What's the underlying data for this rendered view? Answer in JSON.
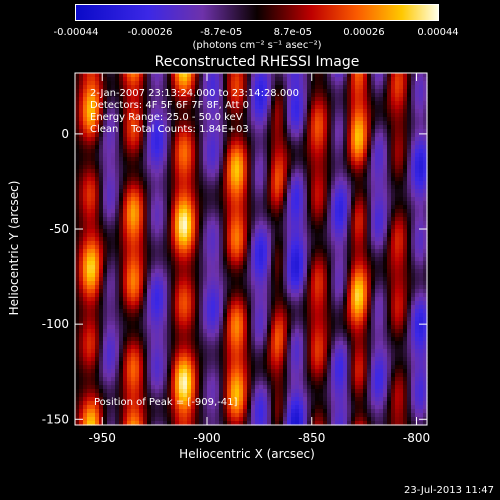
{
  "chart_data": {
    "type": "heatmap",
    "title": "Reconstructed RHESSI Image",
    "xlabel": "Heliocentric X (arcsec)",
    "ylabel": "Heliocentric Y (arcsec)",
    "xlim": [
      -963,
      -795
    ],
    "ylim": [
      -153,
      32
    ],
    "xticks": [
      -950,
      -900,
      -850,
      -800
    ],
    "xtick_labels": [
      "-950",
      "-900",
      "-850",
      "-800"
    ],
    "yticks": [
      0,
      -50,
      -100,
      -150
    ],
    "ytick_labels": [
      "0",
      "-50",
      "-100",
      "-150"
    ],
    "colorbar": {
      "ticks": [
        -0.00044,
        -0.00026,
        -8.7e-05,
        8.7e-05,
        0.00026,
        0.00044
      ],
      "tick_labels": [
        "-0.00044",
        "-0.00026",
        "-8.7e-05",
        "8.7e-05",
        "0.00026",
        "0.00044"
      ],
      "units": "(photons cm⁻² s⁻¹ asec⁻²)",
      "range": [
        -0.00044,
        0.00044
      ]
    },
    "annotations": [
      "2-Jan-2007 23:13:24.000 to 23:14:28.000",
      "Detectors: 4F 5F 6F 7F 8F, Att 0",
      "Energy Range: 25.0 - 50.0 keV",
      "Clean    Total Counts: 1.84E+03"
    ],
    "peak_label": "Position of Peak = [-909,-41]",
    "peak": [
      -909,
      -41
    ],
    "stripes": [
      {
        "x": -955,
        "sign": 1,
        "amp": 0.9
      },
      {
        "x": -947,
        "sign": -1,
        "amp": 0.5
      },
      {
        "x": -935,
        "sign": 1,
        "amp": 0.85
      },
      {
        "x": -924,
        "sign": -1,
        "amp": 0.6
      },
      {
        "x": -911,
        "sign": 1,
        "amp": 1.0
      },
      {
        "x": -897,
        "sign": -1,
        "amp": 0.55
      },
      {
        "x": -886,
        "sign": 1,
        "amp": 0.9
      },
      {
        "x": -874,
        "sign": -1,
        "amp": 0.7
      },
      {
        "x": -866,
        "sign": 1,
        "amp": 0.7
      },
      {
        "x": -858,
        "sign": -1,
        "amp": 0.85
      },
      {
        "x": -847,
        "sign": 1,
        "amp": 0.6
      },
      {
        "x": -836,
        "sign": -1,
        "amp": 0.7
      },
      {
        "x": -828,
        "sign": 1,
        "amp": 0.95
      },
      {
        "x": -818,
        "sign": -1,
        "amp": 0.6
      },
      {
        "x": -809,
        "sign": 1,
        "amp": 0.55
      },
      {
        "x": -798,
        "sign": -1,
        "amp": 0.7
      },
      {
        "x": -787,
        "sign": 1,
        "amp": 1.0
      }
    ]
  },
  "footer": "23-Jul-2013 11:47"
}
